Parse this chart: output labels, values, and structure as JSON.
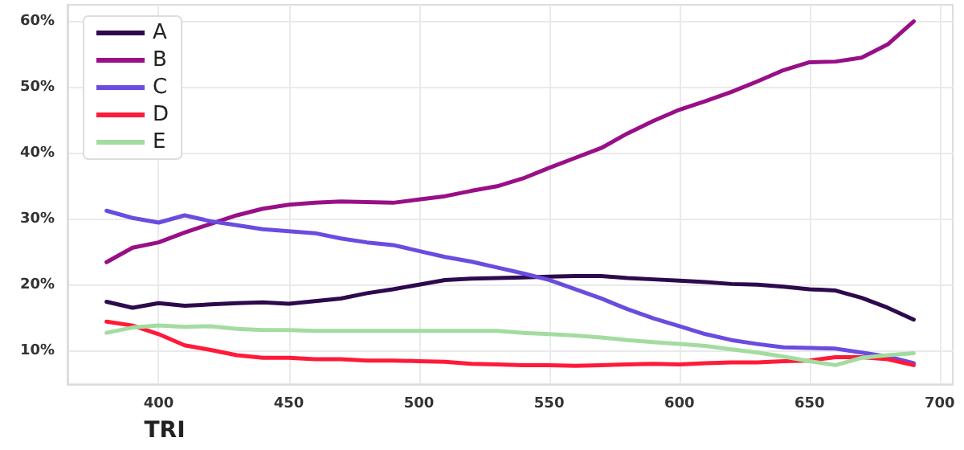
{
  "chart_data": {
    "type": "line",
    "xlabel": "TRI",
    "x": [
      380,
      390,
      400,
      410,
      420,
      430,
      440,
      450,
      460,
      470,
      480,
      490,
      500,
      510,
      520,
      530,
      540,
      550,
      560,
      570,
      580,
      590,
      600,
      610,
      620,
      630,
      640,
      650,
      660,
      670,
      680,
      690
    ],
    "series": [
      {
        "name": "A",
        "color": "#2d0a4e",
        "values": [
          17.5,
          16.6,
          17.3,
          16.9,
          17.1,
          17.3,
          17.4,
          17.2,
          17.6,
          18,
          18.8,
          19.4,
          20.1,
          20.8,
          21,
          21.1,
          21.2,
          21.3,
          21.4,
          21.4,
          21.1,
          20.9,
          20.7,
          20.5,
          20.2,
          20.1,
          19.8,
          19.4,
          19.2,
          18.1,
          16.6,
          14.8
        ]
      },
      {
        "name": "B",
        "color": "#990f87",
        "values": [
          23.5,
          25.7,
          26.5,
          28,
          29.3,
          30.6,
          31.6,
          32.2,
          32.5,
          32.7,
          32.6,
          32.5,
          33,
          33.5,
          34.3,
          35,
          36.2,
          37.8,
          39.3,
          40.8,
          43,
          44.9,
          46.6,
          47.9,
          49.3,
          50.9,
          52.6,
          53.8,
          53.9,
          54.5,
          56.5,
          60
        ]
      },
      {
        "name": "C",
        "color": "#6a4ce0",
        "values": [
          31.3,
          30.2,
          29.5,
          30.6,
          29.7,
          29.1,
          28.5,
          28.2,
          27.9,
          27.1,
          26.5,
          26.1,
          25.2,
          24.3,
          23.6,
          22.7,
          21.8,
          20.8,
          19.4,
          18,
          16.4,
          15,
          13.8,
          12.6,
          11.7,
          11.1,
          10.6,
          10.5,
          10.4,
          9.8,
          9.2,
          8.2
        ]
      },
      {
        "name": "D",
        "color": "#ff1a3a",
        "values": [
          14.5,
          13.9,
          12.6,
          10.9,
          10.2,
          9.4,
          9,
          9,
          8.8,
          8.8,
          8.6,
          8.6,
          8.5,
          8.4,
          8.1,
          8,
          7.9,
          7.9,
          7.8,
          7.9,
          8,
          8.1,
          8,
          8.2,
          8.3,
          8.3,
          8.5,
          8.6,
          9.1,
          9.1,
          8.8,
          7.9
        ]
      },
      {
        "name": "E",
        "color": "#a3dca0",
        "values": [
          12.8,
          13.6,
          13.9,
          13.7,
          13.8,
          13.4,
          13.2,
          13.2,
          13.1,
          13.1,
          13.1,
          13.1,
          13.1,
          13.1,
          13.1,
          13.1,
          12.8,
          12.6,
          12.4,
          12.1,
          11.7,
          11.4,
          11.1,
          10.8,
          10.3,
          9.8,
          9.2,
          8.5,
          7.9,
          9,
          9.4,
          9.7
        ]
      }
    ],
    "xlim": [
      365,
      705
    ],
    "xticks": [
      400,
      450,
      500,
      550,
      600,
      650,
      700
    ],
    "ylim": [
      5,
      62.5
    ],
    "yticks": [
      {
        "value": 10,
        "label": "10%"
      },
      {
        "value": 20,
        "label": "20%"
      },
      {
        "value": 30,
        "label": "30%"
      },
      {
        "value": 40,
        "label": "40%"
      },
      {
        "value": 50,
        "label": "50%"
      },
      {
        "value": 60,
        "label": "60%"
      }
    ],
    "grid": true,
    "legend": "top left",
    "marker": "none",
    "line_style": "solid"
  }
}
